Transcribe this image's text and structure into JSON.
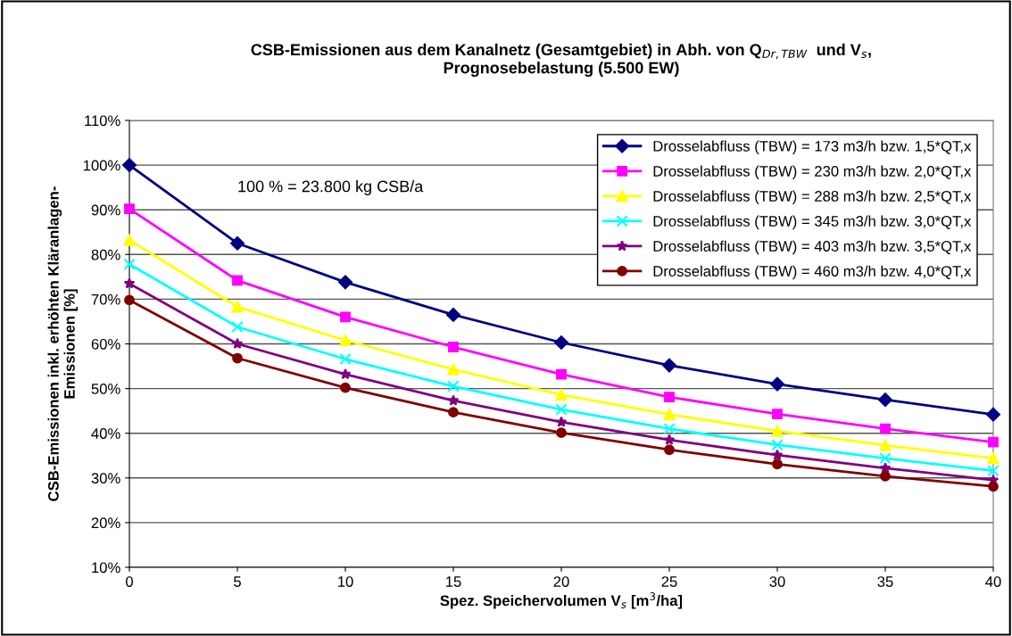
{
  "chart_data": {
    "type": "line",
    "title": "CSB-Emissionen aus dem Kanalnetz (Gesamtgebiet) in Abh. von Q$_{Dr,TBW}$  und V$_{s}$,\nPrognosebelastung (5.500 EW)",
    "xlabel": "Spez. Speichervolumen V$_{s}$ [m$^{3}$/ha]",
    "ylabel": "CSB-Emissionen inkl. erhöhten Kläranlagen-\nEmissionen [%]",
    "annotations": [
      "100 % = 23.800 kg CSB/a"
    ],
    "x": [
      0,
      5,
      10,
      15,
      20,
      25,
      30,
      35,
      40
    ],
    "series": [
      {
        "name": "Drosselabfluss (TBW) = 173 m3/h bzw. 1,5*QT,x",
        "color": "#000080",
        "marker": "diamond",
        "values": [
          100,
          82.5,
          73.8,
          66.5,
          60.3,
          55.2,
          51.0,
          47.5,
          44.2
        ]
      },
      {
        "name": "Drosselabfluss (TBW) = 230 m3/h bzw. 2,0*QT,x",
        "color": "#ff00ff",
        "marker": "square",
        "values": [
          90.2,
          74.2,
          66.0,
          59.3,
          53.2,
          48.1,
          44.3,
          41.0,
          38.0
        ]
      },
      {
        "name": "Drosselabfluss (TBW) = 288 m3/h bzw. 2,5*QT,x",
        "color": "#ffff00",
        "marker": "triangle",
        "values": [
          83.2,
          68.3,
          60.8,
          54.3,
          48.6,
          44.2,
          40.5,
          37.3,
          34.4
        ]
      },
      {
        "name": "Drosselabfluss (TBW) = 345 m3/h bzw. 3,0*QT,x",
        "color": "#00ffff",
        "marker": "cross",
        "values": [
          77.8,
          63.8,
          56.6,
          50.5,
          45.3,
          41.0,
          37.4,
          34.4,
          31.6
        ]
      },
      {
        "name": "Drosselabfluss (TBW) = 403 m3/h bzw. 3,5*QT,x",
        "color": "#800080",
        "marker": "star",
        "values": [
          73.5,
          60.0,
          53.2,
          47.3,
          42.5,
          38.5,
          35.1,
          32.2,
          29.5
        ]
      },
      {
        "name": "Drosselabfluss (TBW) = 460 m3/h bzw. 4,0*QT,x",
        "color": "#800000",
        "marker": "circle",
        "values": [
          69.8,
          56.8,
          50.2,
          44.7,
          40.1,
          36.3,
          33.1,
          30.4,
          28.1
        ]
      }
    ],
    "xlim": [
      0,
      40
    ],
    "xticks": [
      0,
      5,
      10,
      15,
      20,
      25,
      30,
      35,
      40
    ],
    "ylim": [
      10,
      110
    ],
    "yticks": [
      {
        "value": 10,
        "label": "10%"
      },
      {
        "value": 20,
        "label": "20%"
      },
      {
        "value": 30,
        "label": "30%"
      },
      {
        "value": 40,
        "label": "40%"
      },
      {
        "value": 50,
        "label": "50%"
      },
      {
        "value": 60,
        "label": "60%"
      },
      {
        "value": 70,
        "label": "70%"
      },
      {
        "value": 80,
        "label": "80%"
      },
      {
        "value": 90,
        "label": "90%"
      },
      {
        "value": 100,
        "label": "100%"
      },
      {
        "value": 110,
        "label": "110%"
      }
    ],
    "grid": "y",
    "legend": "top right",
    "line_style": "solid"
  }
}
